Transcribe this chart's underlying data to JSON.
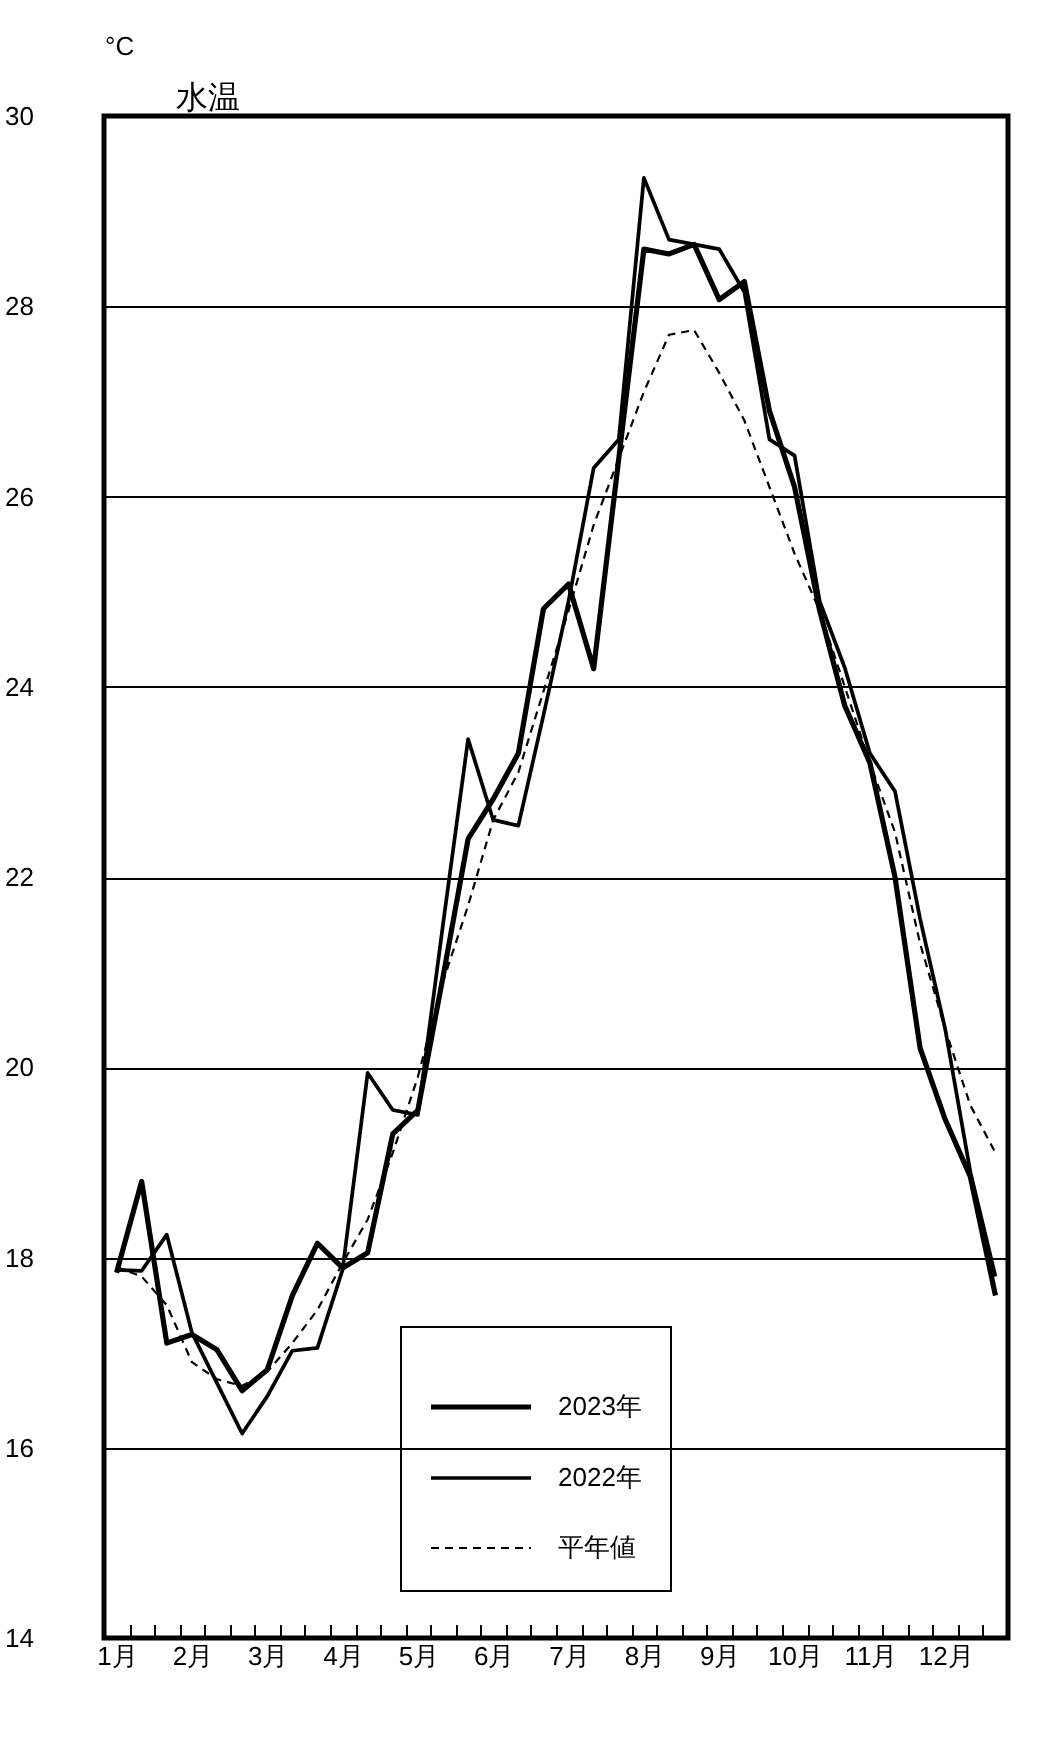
{
  "chart_data": {
    "type": "line",
    "title": "水温",
    "ylabel": "°C",
    "categories": [
      "1月",
      null,
      null,
      "2月",
      null,
      null,
      "3月",
      null,
      null,
      "4月",
      null,
      null,
      "5月",
      null,
      null,
      "6月",
      null,
      null,
      "7月",
      null,
      null,
      "8月",
      null,
      null,
      "9月",
      null,
      null,
      "10月",
      null,
      null,
      "11月",
      null,
      null,
      "12月",
      null,
      null
    ],
    "series": [
      {
        "name": "2023年",
        "color": "#000000",
        "line_style": "solid",
        "values": [
          17.84,
          18.8,
          17.1,
          17.19,
          17.03,
          16.6,
          16.82,
          17.6,
          18.15,
          17.89,
          18.05,
          19.3,
          19.55,
          20.95,
          22.4,
          22.82,
          23.3,
          24.82,
          25.08,
          24.19,
          26.4,
          28.6,
          28.55,
          28.65,
          28.07,
          28.26,
          26.9,
          26.1,
          24.8,
          23.8,
          23.2,
          22.0,
          20.2,
          19.45,
          18.85,
          17.6
        ]
      },
      {
        "name": "2022年",
        "color": "#000000",
        "line_style": "solid",
        "values": [
          17.87,
          17.86,
          18.24,
          17.21,
          16.68,
          16.15,
          16.54,
          17.02,
          17.05,
          17.87,
          19.94,
          19.55,
          19.5,
          21.5,
          23.45,
          22.6,
          22.54,
          23.7,
          24.9,
          26.3,
          26.6,
          29.35,
          28.7,
          28.65,
          28.6,
          28.15,
          26.6,
          26.43,
          24.9,
          24.2,
          23.3,
          22.9,
          21.56,
          20.4,
          18.9,
          17.8
        ]
      },
      {
        "name": "平年値",
        "color": "#000000",
        "line_style": "dashed",
        "values": [
          17.9,
          17.8,
          17.5,
          16.9,
          16.72,
          16.65,
          16.8,
          17.1,
          17.45,
          17.94,
          18.4,
          19.1,
          19.9,
          20.9,
          21.7,
          22.6,
          23.1,
          23.95,
          24.8,
          25.7,
          26.4,
          27.1,
          27.7,
          27.75,
          27.3,
          26.8,
          26.1,
          25.4,
          24.8,
          24.0,
          23.2,
          22.47,
          21.3,
          20.4,
          19.6,
          19.1
        ]
      }
    ],
    "ylim": [
      14,
      30
    ],
    "yticks": [
      14,
      16,
      18,
      20,
      22,
      24,
      26,
      28,
      30
    ],
    "grid": "y",
    "legend": "bottom"
  }
}
